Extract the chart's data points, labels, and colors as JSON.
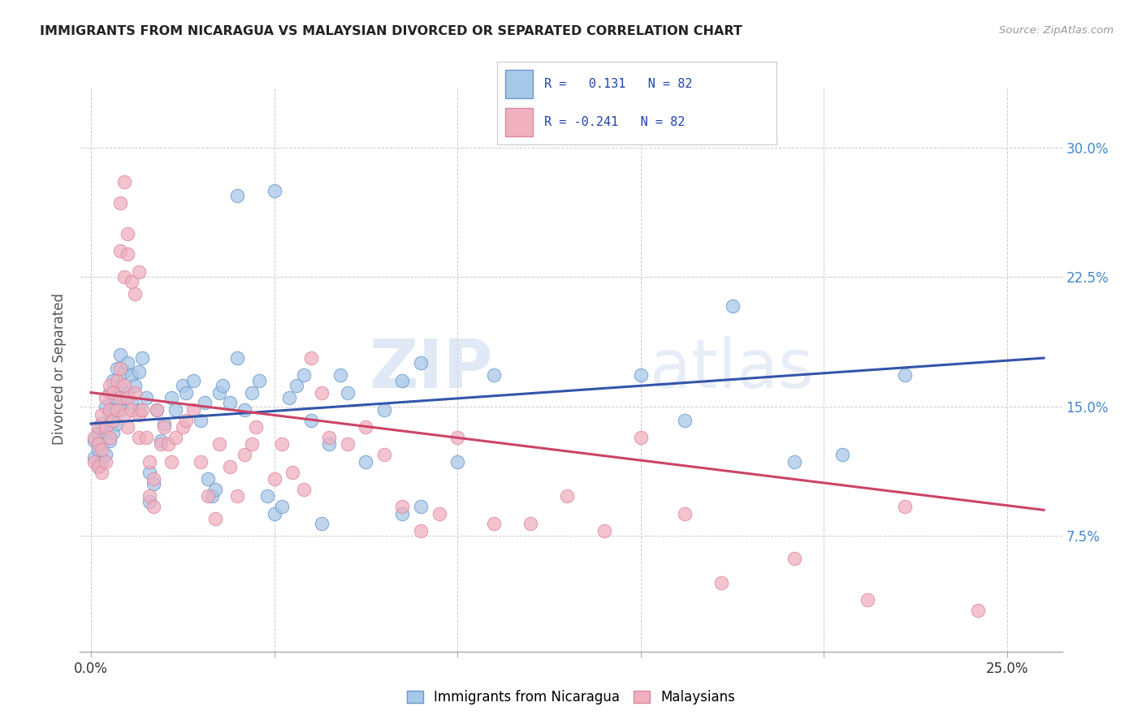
{
  "title": "IMMIGRANTS FROM NICARAGUA VS MALAYSIAN DIVORCED OR SEPARATED CORRELATION CHART",
  "source": "Source: ZipAtlas.com",
  "ylabel": "Divorced or Separated",
  "x_tick_positions": [
    0.0,
    0.05,
    0.1,
    0.15,
    0.2,
    0.25
  ],
  "x_tick_labels": [
    "0.0%",
    "",
    "",
    "",
    "",
    "25.0%"
  ],
  "y_tick_positions": [
    0.075,
    0.15,
    0.225,
    0.3
  ],
  "y_tick_labels": [
    "7.5%",
    "15.0%",
    "22.5%",
    "30.0%"
  ],
  "xlim": [
    -0.003,
    0.265
  ],
  "ylim": [
    0.008,
    0.335
  ],
  "blue_fill": "#a8c8e8",
  "blue_edge": "#6699cc",
  "pink_fill": "#f0b0c0",
  "pink_edge": "#dd8899",
  "line_blue": "#3355aa",
  "line_pink": "#cc4466",
  "watermark_color": "#d0dff0",
  "legend_label_blue": "Immigrants from Nicaragua",
  "legend_label_pink": "Malaysians",
  "blue_line_x": [
    0.0,
    0.26
  ],
  "blue_line_y": [
    0.14,
    0.178
  ],
  "pink_line_x": [
    0.0,
    0.26
  ],
  "pink_line_y": [
    0.158,
    0.09
  ],
  "blue_scatter": [
    [
      0.001,
      0.13
    ],
    [
      0.001,
      0.12
    ],
    [
      0.002,
      0.125
    ],
    [
      0.002,
      0.135
    ],
    [
      0.002,
      0.115
    ],
    [
      0.003,
      0.14
    ],
    [
      0.003,
      0.128
    ],
    [
      0.003,
      0.118
    ],
    [
      0.004,
      0.15
    ],
    [
      0.004,
      0.135
    ],
    [
      0.004,
      0.122
    ],
    [
      0.005,
      0.158
    ],
    [
      0.005,
      0.145
    ],
    [
      0.005,
      0.13
    ],
    [
      0.006,
      0.165
    ],
    [
      0.006,
      0.148
    ],
    [
      0.006,
      0.135
    ],
    [
      0.007,
      0.172
    ],
    [
      0.007,
      0.155
    ],
    [
      0.007,
      0.14
    ],
    [
      0.008,
      0.18
    ],
    [
      0.008,
      0.162
    ],
    [
      0.008,
      0.148
    ],
    [
      0.009,
      0.17
    ],
    [
      0.009,
      0.155
    ],
    [
      0.01,
      0.175
    ],
    [
      0.01,
      0.158
    ],
    [
      0.011,
      0.168
    ],
    [
      0.011,
      0.152
    ],
    [
      0.012,
      0.162
    ],
    [
      0.013,
      0.17
    ],
    [
      0.013,
      0.148
    ],
    [
      0.014,
      0.178
    ],
    [
      0.015,
      0.155
    ],
    [
      0.016,
      0.095
    ],
    [
      0.016,
      0.112
    ],
    [
      0.017,
      0.105
    ],
    [
      0.018,
      0.148
    ],
    [
      0.019,
      0.13
    ],
    [
      0.02,
      0.14
    ],
    [
      0.022,
      0.155
    ],
    [
      0.023,
      0.148
    ],
    [
      0.025,
      0.162
    ],
    [
      0.026,
      0.158
    ],
    [
      0.028,
      0.165
    ],
    [
      0.03,
      0.142
    ],
    [
      0.031,
      0.152
    ],
    [
      0.032,
      0.108
    ],
    [
      0.033,
      0.098
    ],
    [
      0.034,
      0.102
    ],
    [
      0.035,
      0.158
    ],
    [
      0.036,
      0.162
    ],
    [
      0.038,
      0.152
    ],
    [
      0.04,
      0.178
    ],
    [
      0.042,
      0.148
    ],
    [
      0.044,
      0.158
    ],
    [
      0.046,
      0.165
    ],
    [
      0.048,
      0.098
    ],
    [
      0.05,
      0.088
    ],
    [
      0.052,
      0.092
    ],
    [
      0.054,
      0.155
    ],
    [
      0.056,
      0.162
    ],
    [
      0.058,
      0.168
    ],
    [
      0.06,
      0.142
    ],
    [
      0.063,
      0.082
    ],
    [
      0.065,
      0.128
    ],
    [
      0.068,
      0.168
    ],
    [
      0.07,
      0.158
    ],
    [
      0.075,
      0.118
    ],
    [
      0.08,
      0.148
    ],
    [
      0.085,
      0.088
    ],
    [
      0.09,
      0.092
    ],
    [
      0.04,
      0.272
    ],
    [
      0.05,
      0.275
    ],
    [
      0.085,
      0.165
    ],
    [
      0.09,
      0.175
    ],
    [
      0.1,
      0.118
    ],
    [
      0.11,
      0.168
    ],
    [
      0.15,
      0.168
    ],
    [
      0.162,
      0.142
    ],
    [
      0.175,
      0.208
    ],
    [
      0.192,
      0.118
    ],
    [
      0.205,
      0.122
    ],
    [
      0.222,
      0.168
    ]
  ],
  "pink_scatter": [
    [
      0.001,
      0.132
    ],
    [
      0.001,
      0.118
    ],
    [
      0.002,
      0.128
    ],
    [
      0.002,
      0.138
    ],
    [
      0.002,
      0.115
    ],
    [
      0.003,
      0.145
    ],
    [
      0.003,
      0.125
    ],
    [
      0.003,
      0.112
    ],
    [
      0.004,
      0.155
    ],
    [
      0.004,
      0.138
    ],
    [
      0.004,
      0.118
    ],
    [
      0.005,
      0.162
    ],
    [
      0.005,
      0.148
    ],
    [
      0.005,
      0.132
    ],
    [
      0.006,
      0.158
    ],
    [
      0.006,
      0.142
    ],
    [
      0.007,
      0.165
    ],
    [
      0.007,
      0.148
    ],
    [
      0.008,
      0.172
    ],
    [
      0.008,
      0.155
    ],
    [
      0.009,
      0.162
    ],
    [
      0.009,
      0.145
    ],
    [
      0.01,
      0.155
    ],
    [
      0.01,
      0.138
    ],
    [
      0.011,
      0.148
    ],
    [
      0.012,
      0.158
    ],
    [
      0.013,
      0.145
    ],
    [
      0.013,
      0.132
    ],
    [
      0.008,
      0.24
    ],
    [
      0.009,
      0.225
    ],
    [
      0.01,
      0.238
    ],
    [
      0.01,
      0.25
    ],
    [
      0.011,
      0.222
    ],
    [
      0.012,
      0.215
    ],
    [
      0.013,
      0.228
    ],
    [
      0.008,
      0.268
    ],
    [
      0.009,
      0.28
    ],
    [
      0.014,
      0.148
    ],
    [
      0.015,
      0.132
    ],
    [
      0.016,
      0.118
    ],
    [
      0.016,
      0.098
    ],
    [
      0.017,
      0.108
    ],
    [
      0.017,
      0.092
    ],
    [
      0.018,
      0.148
    ],
    [
      0.019,
      0.128
    ],
    [
      0.02,
      0.138
    ],
    [
      0.021,
      0.128
    ],
    [
      0.022,
      0.118
    ],
    [
      0.023,
      0.132
    ],
    [
      0.025,
      0.138
    ],
    [
      0.026,
      0.142
    ],
    [
      0.028,
      0.148
    ],
    [
      0.03,
      0.118
    ],
    [
      0.032,
      0.098
    ],
    [
      0.034,
      0.085
    ],
    [
      0.035,
      0.128
    ],
    [
      0.038,
      0.115
    ],
    [
      0.04,
      0.098
    ],
    [
      0.042,
      0.122
    ],
    [
      0.044,
      0.128
    ],
    [
      0.045,
      0.138
    ],
    [
      0.05,
      0.108
    ],
    [
      0.052,
      0.128
    ],
    [
      0.055,
      0.112
    ],
    [
      0.058,
      0.102
    ],
    [
      0.06,
      0.178
    ],
    [
      0.063,
      0.158
    ],
    [
      0.065,
      0.132
    ],
    [
      0.07,
      0.128
    ],
    [
      0.075,
      0.138
    ],
    [
      0.08,
      0.122
    ],
    [
      0.085,
      0.092
    ],
    [
      0.09,
      0.078
    ],
    [
      0.095,
      0.088
    ],
    [
      0.1,
      0.132
    ],
    [
      0.11,
      0.082
    ],
    [
      0.12,
      0.082
    ],
    [
      0.13,
      0.098
    ],
    [
      0.14,
      0.078
    ],
    [
      0.15,
      0.132
    ],
    [
      0.162,
      0.088
    ],
    [
      0.172,
      0.048
    ],
    [
      0.192,
      0.062
    ],
    [
      0.212,
      0.038
    ],
    [
      0.222,
      0.092
    ],
    [
      0.242,
      0.032
    ]
  ]
}
